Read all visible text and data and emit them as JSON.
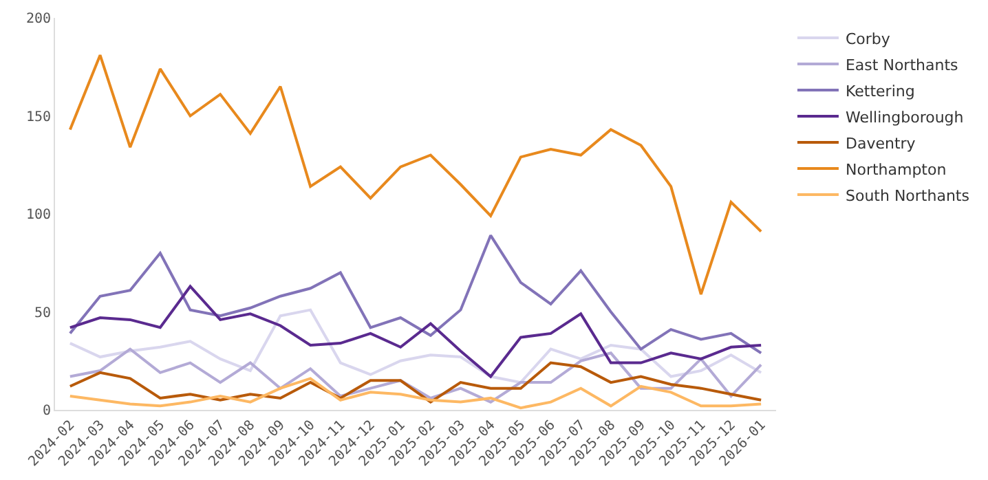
{
  "chart_data": {
    "type": "line",
    "categories": [
      "2024-02",
      "2024-03",
      "2024-04",
      "2024-05",
      "2024-06",
      "2024-07",
      "2024-08",
      "2024-09",
      "2024-10",
      "2024-11",
      "2024-12",
      "2025-01",
      "2025-02",
      "2025-03",
      "2025-04",
      "2025-05",
      "2025-06",
      "2025-07",
      "2025-08",
      "2025-09",
      "2025-10",
      "2025-11",
      "2025-12",
      "2026-01"
    ],
    "series": [
      {
        "name": "Corby",
        "color": "#d9d6ee",
        "values": [
          34,
          27,
          30,
          32,
          35,
          26,
          20,
          48,
          51,
          24,
          18,
          25,
          28,
          27,
          17,
          14,
          31,
          26,
          33,
          31,
          17,
          20,
          28,
          19
        ]
      },
      {
        "name": "East Northants",
        "color": "#b3aad6",
        "values": [
          17,
          20,
          31,
          19,
          24,
          14,
          24,
          11,
          21,
          7,
          11,
          15,
          6,
          11,
          4,
          14,
          14,
          25,
          29,
          11,
          11,
          26,
          7,
          23
        ]
      },
      {
        "name": "Kettering",
        "color": "#8273b8",
        "values": [
          39,
          58,
          61,
          80,
          51,
          48,
          52,
          58,
          62,
          70,
          42,
          47,
          38,
          51,
          89,
          65,
          54,
          71,
          50,
          31,
          41,
          36,
          39,
          29
        ]
      },
      {
        "name": "Wellingborough",
        "color": "#5a2a8f",
        "values": [
          42,
          47,
          46,
          42,
          63,
          46,
          49,
          43,
          33,
          34,
          39,
          32,
          44,
          30,
          17,
          37,
          39,
          49,
          24,
          24,
          29,
          26,
          32,
          33
        ]
      },
      {
        "name": "Daventry",
        "color": "#b85a0a",
        "values": [
          12,
          19,
          16,
          6,
          8,
          5,
          8,
          6,
          14,
          6,
          15,
          15,
          4,
          14,
          11,
          11,
          24,
          22,
          14,
          17,
          13,
          11,
          8,
          5
        ]
      },
      {
        "name": "Northampton",
        "color": "#e8891d",
        "values": [
          143,
          181,
          134,
          174,
          150,
          161,
          141,
          165,
          114,
          124,
          108,
          124,
          130,
          115,
          99,
          129,
          133,
          130,
          143,
          135,
          114,
          59,
          106,
          91
        ]
      },
      {
        "name": "South Northants",
        "color": "#fdb863",
        "values": [
          7,
          5,
          3,
          2,
          4,
          7,
          4,
          11,
          16,
          5,
          9,
          8,
          5,
          4,
          6,
          1,
          4,
          11,
          2,
          12,
          9,
          2,
          2,
          3
        ]
      }
    ],
    "ylim": [
      0,
      200
    ],
    "yticks": [
      0,
      50,
      100,
      150,
      200
    ],
    "grid": false,
    "legend": "top right",
    "marker": "none",
    "line_style": "solid"
  }
}
